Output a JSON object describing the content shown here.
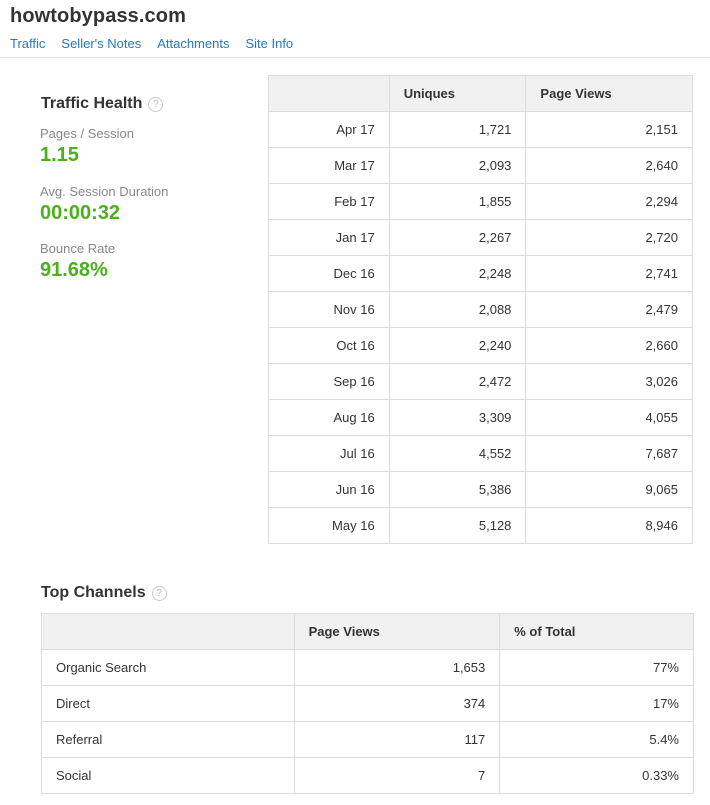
{
  "site": {
    "title": "howtobypass.com"
  },
  "nav": [
    "Traffic",
    "Seller's Notes",
    "Attachments",
    "Site Info"
  ],
  "traffic_health": {
    "title": "Traffic Health",
    "help": "?",
    "metrics": [
      {
        "label": "Pages / Session",
        "value": "1.15"
      },
      {
        "label": "Avg. Session Duration",
        "value": "00:00:32"
      },
      {
        "label": "Bounce Rate",
        "value": "91.68%"
      }
    ]
  },
  "traffic_table": {
    "headers": [
      "",
      "Uniques",
      "Page Views"
    ],
    "rows": [
      [
        "Apr 17",
        "1,721",
        "2,151"
      ],
      [
        "Mar 17",
        "2,093",
        "2,640"
      ],
      [
        "Feb 17",
        "1,855",
        "2,294"
      ],
      [
        "Jan 17",
        "2,267",
        "2,720"
      ],
      [
        "Dec 16",
        "2,248",
        "2,741"
      ],
      [
        "Nov 16",
        "2,088",
        "2,479"
      ],
      [
        "Oct 16",
        "2,240",
        "2,660"
      ],
      [
        "Sep 16",
        "2,472",
        "3,026"
      ],
      [
        "Aug 16",
        "3,309",
        "4,055"
      ],
      [
        "Jul 16",
        "4,552",
        "7,687"
      ],
      [
        "Jun 16",
        "5,386",
        "9,065"
      ],
      [
        "May 16",
        "5,128",
        "8,946"
      ]
    ]
  },
  "top_channels": {
    "title": "Top Channels",
    "help": "?",
    "headers": [
      "",
      "Page Views",
      "% of Total"
    ],
    "rows": [
      [
        "Organic Search",
        "1,653",
        "77%"
      ],
      [
        "Direct",
        "374",
        "17%"
      ],
      [
        "Referral",
        "117",
        "5.4%"
      ],
      [
        "Social",
        "7",
        "0.33%"
      ]
    ]
  },
  "colors": {
    "metric_value": "#4caf1d",
    "link": "#2a7ab8",
    "header_bg": "#f1f1f1"
  }
}
